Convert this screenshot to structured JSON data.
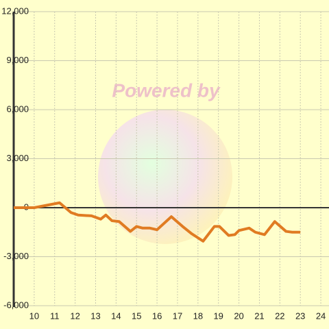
{
  "chart_data": {
    "type": "line",
    "watermark": "Powered by",
    "x": [
      9,
      10,
      11.24,
      11.8,
      12.15,
      12.8,
      13.25,
      13.5,
      13.8,
      14.15,
      14.7,
      15.0,
      15.3,
      15.65,
      16.0,
      16.7,
      17.25,
      17.7,
      18.25,
      18.8,
      19.05,
      19.5,
      19.8,
      20.0,
      20.5,
      20.8,
      21.25,
      21.75,
      22.3,
      22.6,
      23.0
    ],
    "series": [
      {
        "color": "#e07b22",
        "values": [
          0,
          0,
          300,
          -300,
          -450,
          -500,
          -700,
          -450,
          -800,
          -850,
          -1450,
          -1150,
          -1250,
          -1250,
          -1350,
          -550,
          -1150,
          -1600,
          -2050,
          -1150,
          -1150,
          -1700,
          -1650,
          -1400,
          -1250,
          -1500,
          -1650,
          -850,
          -1450,
          -1500,
          -1500
        ]
      }
    ],
    "xlim": [
      9,
      24.4
    ],
    "xticks": [
      10,
      11,
      12,
      13,
      14,
      15,
      16,
      17,
      18,
      19,
      20,
      21,
      22,
      23,
      24
    ],
    "ylim": [
      -6000,
      12000
    ],
    "yticks": [
      {
        "value": -6000,
        "label": "-6,000"
      },
      {
        "value": -3000,
        "label": "-3,000"
      },
      {
        "value": 0,
        "label": "0"
      },
      {
        "value": 3000,
        "label": "3,000"
      },
      {
        "value": 6000,
        "label": "6,000"
      },
      {
        "value": 9000,
        "label": "9,000"
      },
      {
        "value": 12000,
        "label": "12,000"
      }
    ],
    "grid": true
  }
}
